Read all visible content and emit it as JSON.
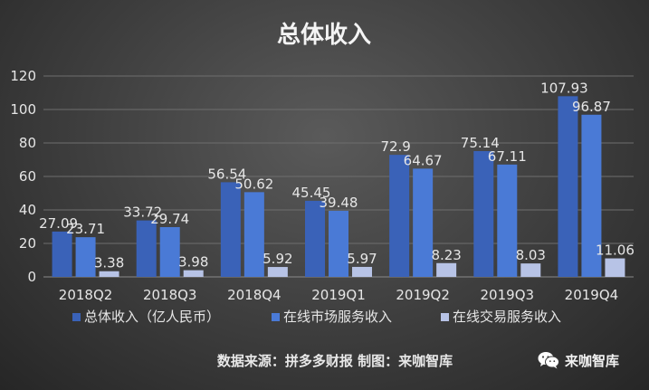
{
  "chart_data": {
    "type": "bar",
    "title": "总体收入",
    "categories": [
      "2018Q2",
      "2018Q3",
      "2018Q4",
      "2019Q1",
      "2019Q2",
      "2019Q3",
      "2019Q4"
    ],
    "series": [
      {
        "name": "总体收入（亿人民币）",
        "values": [
          27.09,
          33.72,
          56.54,
          45.45,
          72.9,
          75.14,
          107.93
        ],
        "color": "#3a62b8"
      },
      {
        "name": "在线市场服务收入",
        "values": [
          23.71,
          29.74,
          50.62,
          39.48,
          64.67,
          67.11,
          96.87
        ],
        "color": "#4a7ad6"
      },
      {
        "name": "在线交易服务收入",
        "values": [
          3.38,
          3.98,
          5.92,
          5.97,
          8.23,
          8.03,
          11.06
        ],
        "color": "#b7c3e6"
      }
    ],
    "ylim": [
      0,
      120
    ],
    "yticks": [
      0,
      20,
      40,
      60,
      80,
      100,
      120
    ],
    "xlabel": "",
    "ylabel": "",
    "grid": true,
    "legend": "bottom"
  },
  "footer": {
    "source": "数据来源：拼多多财报 制图：来咖智库",
    "brand": "来咖智库"
  },
  "colors": {
    "text": "#e6e6e6",
    "grid": "#6e6e6e"
  },
  "icons": {
    "brand": "wechat-icon"
  }
}
